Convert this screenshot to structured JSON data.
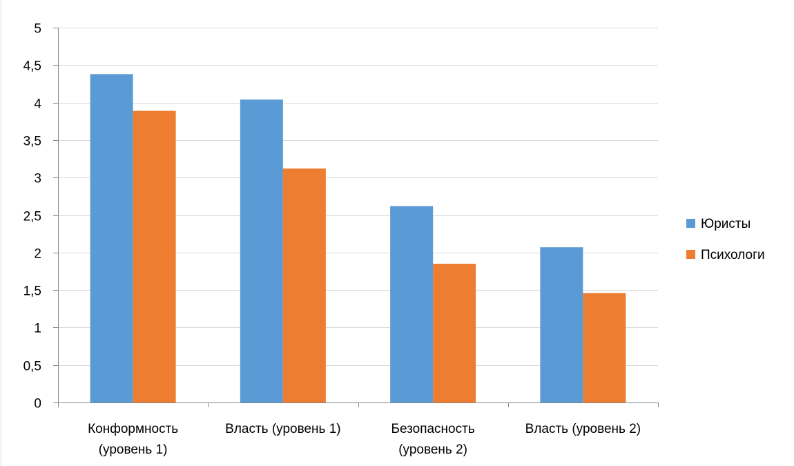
{
  "chart_data": {
    "type": "bar",
    "categories": [
      [
        "Конформность",
        "(уровень 1)"
      ],
      [
        "Власть (уровень 1)"
      ],
      [
        "Безопасность",
        "(уровень 2)"
      ],
      [
        "Власть (уровень 2)"
      ]
    ],
    "series": [
      {
        "name": "Юристы",
        "color": "#5b9bd5",
        "values": [
          4.38,
          4.04,
          2.62,
          2.07
        ]
      },
      {
        "name": "Психологи",
        "color": "#ed7d31",
        "values": [
          3.89,
          3.12,
          1.85,
          1.46
        ]
      }
    ],
    "yticks": [
      "0",
      "0,5",
      "1",
      "1,5",
      "2",
      "2,5",
      "3",
      "3,5",
      "4",
      "4,5",
      "5"
    ],
    "ylim": [
      0,
      5
    ],
    "grid": true,
    "gridline_color": "#d9d9d9",
    "axis_color": "#868686",
    "legend_position": "right",
    "title": "",
    "xlabel": "",
    "ylabel": ""
  }
}
